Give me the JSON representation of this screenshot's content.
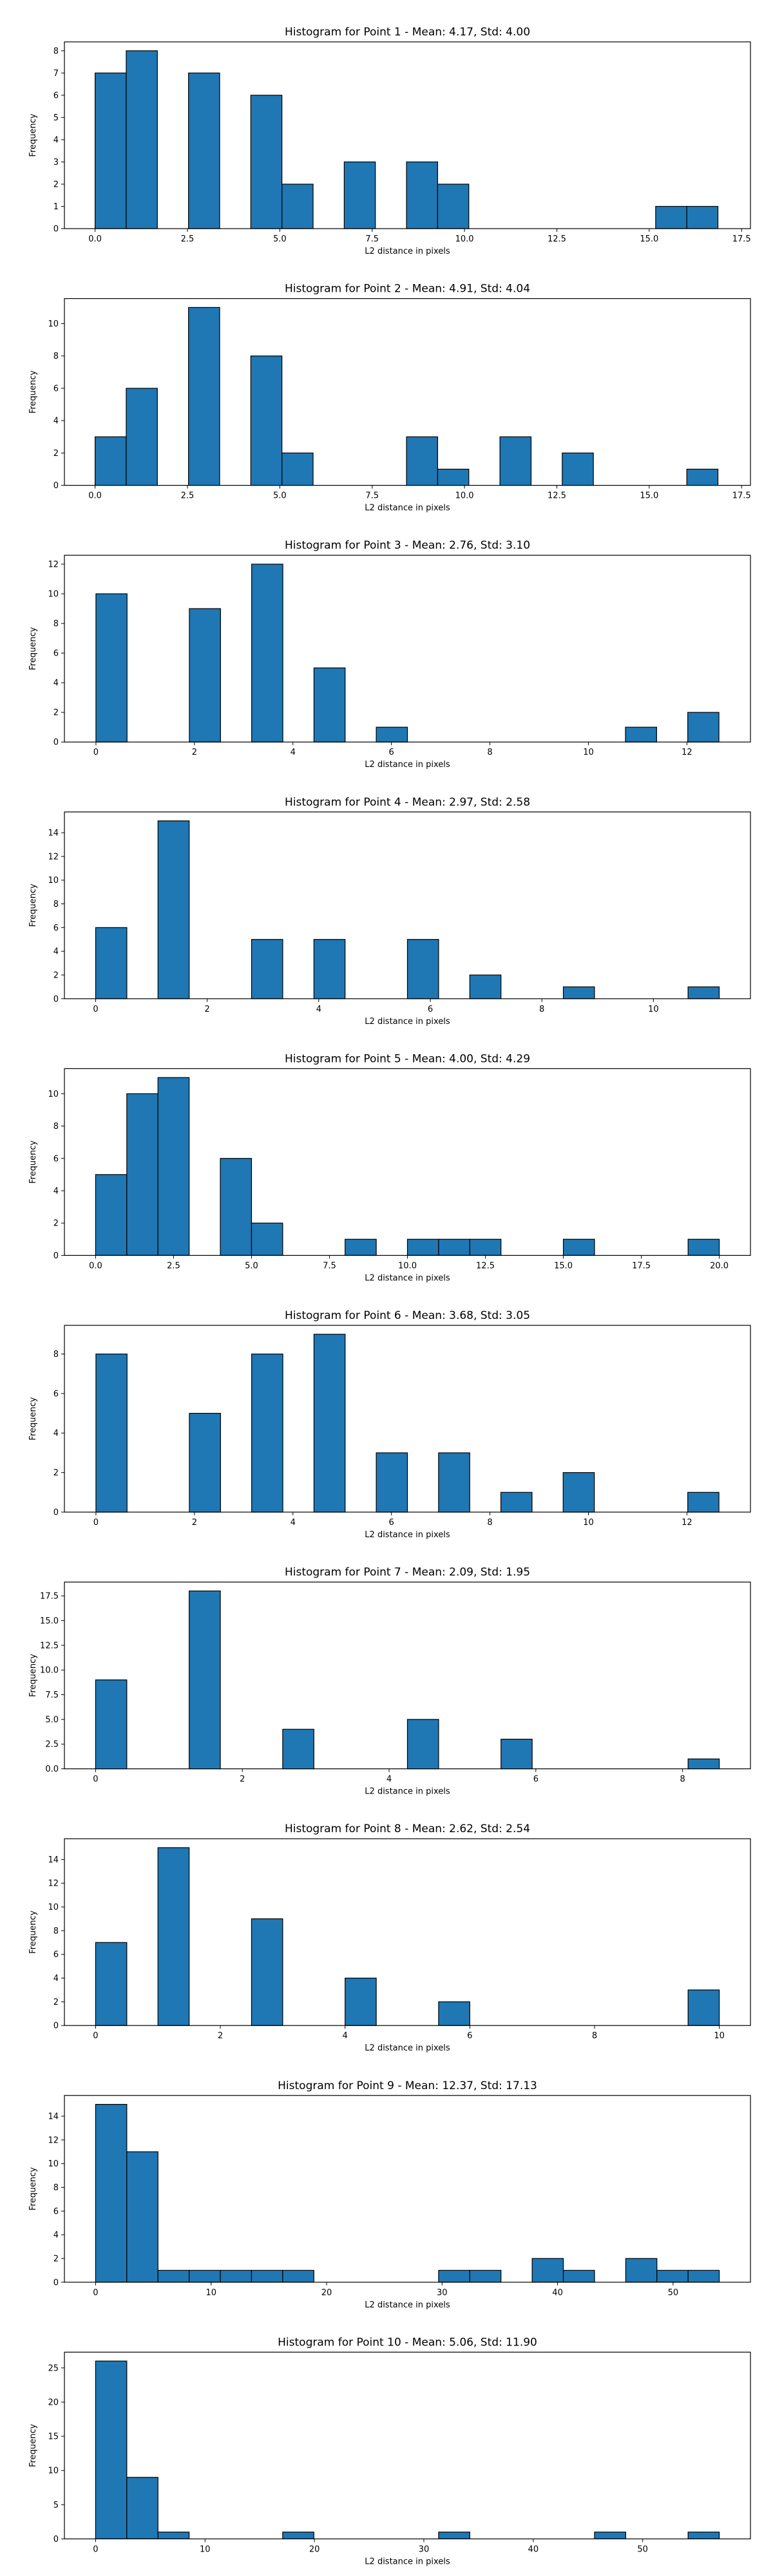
{
  "chart_data": [
    {
      "type": "bar",
      "title": "Histogram for Point 1 - Mean: 4.17, Std: 4.00",
      "xlabel": "L2 distance in pixels",
      "ylabel": "Frequency",
      "xlim": [
        -0.83,
        17.74
      ],
      "ylim": [
        0,
        8.4
      ],
      "xticks": [
        0.0,
        2.5,
        5.0,
        7.5,
        10.0,
        12.5,
        15.0,
        17.5
      ],
      "xtick_labels": [
        "0.0",
        "2.5",
        "5.0",
        "7.5",
        "10.0",
        "12.5",
        "15.0",
        "17.5"
      ],
      "yticks": [
        0,
        1,
        2,
        3,
        4,
        5,
        6,
        7,
        8
      ],
      "ytick_labels": [
        "0",
        "1",
        "2",
        "3",
        "4",
        "5",
        "6",
        "7",
        "8"
      ],
      "bin_edges": [
        0,
        0.843,
        1.686,
        2.529,
        3.372,
        4.215,
        5.058,
        5.901,
        6.744,
        7.587,
        8.43,
        9.273,
        10.116,
        10.959,
        11.802,
        12.645,
        13.488,
        14.331,
        15.174,
        16.017,
        16.86
      ],
      "values": [
        7,
        8,
        0,
        7,
        0,
        6,
        2,
        0,
        3,
        0,
        3,
        2,
        0,
        0,
        0,
        0,
        0,
        0,
        1,
        1
      ],
      "color": "#1f77b4"
    },
    {
      "type": "bar",
      "title": "Histogram for Point 2 - Mean: 4.91, Std: 4.04",
      "xlabel": "L2 distance in pixels",
      "ylabel": "Frequency",
      "xlim": [
        -0.83,
        17.74
      ],
      "ylim": [
        0,
        11.55
      ],
      "xticks": [
        0.0,
        2.5,
        5.0,
        7.5,
        10.0,
        12.5,
        15.0,
        17.5
      ],
      "xtick_labels": [
        "0.0",
        "2.5",
        "5.0",
        "7.5",
        "10.0",
        "12.5",
        "15.0",
        "17.5"
      ],
      "yticks": [
        0,
        2,
        4,
        6,
        8,
        10
      ],
      "ytick_labels": [
        "0",
        "2",
        "4",
        "6",
        "8",
        "10"
      ],
      "bin_edges": [
        0,
        0.843,
        1.686,
        2.529,
        3.372,
        4.215,
        5.058,
        5.901,
        6.744,
        7.587,
        8.43,
        9.273,
        10.116,
        10.959,
        11.802,
        12.645,
        13.488,
        14.331,
        15.174,
        16.017,
        16.86
      ],
      "values": [
        3,
        6,
        0,
        11,
        0,
        8,
        2,
        0,
        0,
        0,
        3,
        1,
        0,
        3,
        0,
        2,
        0,
        0,
        0,
        1
      ],
      "color": "#1f77b4"
    },
    {
      "type": "bar",
      "title": "Histogram for Point 3 - Mean: 2.76, Std: 3.10",
      "xlabel": "L2 distance in pixels",
      "ylabel": "Frequency",
      "xlim": [
        -0.64,
        13.29
      ],
      "ylim": [
        0,
        12.6
      ],
      "xticks": [
        0,
        2,
        4,
        6,
        8,
        10,
        12
      ],
      "xtick_labels": [
        "0",
        "2",
        "4",
        "6",
        "8",
        "10",
        "12"
      ],
      "yticks": [
        0,
        2,
        4,
        6,
        8,
        10,
        12
      ],
      "ytick_labels": [
        "0",
        "2",
        "4",
        "6",
        "8",
        "10",
        "12"
      ],
      "bin_edges": [
        0,
        0.632,
        1.265,
        1.897,
        2.53,
        3.162,
        3.795,
        4.427,
        5.06,
        5.692,
        6.325,
        6.957,
        7.59,
        8.222,
        8.855,
        9.487,
        10.12,
        10.752,
        11.385,
        12.017,
        12.65
      ],
      "values": [
        10,
        0,
        0,
        9,
        0,
        12,
        0,
        5,
        0,
        1,
        0,
        0,
        0,
        0,
        0,
        0,
        0,
        1,
        0,
        2
      ],
      "color": "#1f77b4"
    },
    {
      "type": "bar",
      "title": "Histogram for Point 4 - Mean: 2.97, Std: 2.58",
      "xlabel": "L2 distance in pixels",
      "ylabel": "Frequency",
      "xlim": [
        -0.56,
        11.74
      ],
      "ylim": [
        0,
        15.75
      ],
      "xticks": [
        0,
        2,
        4,
        6,
        8,
        10
      ],
      "xtick_labels": [
        "0",
        "2",
        "4",
        "6",
        "8",
        "10"
      ],
      "yticks": [
        0,
        2,
        4,
        6,
        8,
        10,
        12,
        14
      ],
      "ytick_labels": [
        "0",
        "2",
        "4",
        "6",
        "8",
        "10",
        "12",
        "14"
      ],
      "bin_edges": [
        0,
        0.559,
        1.118,
        1.677,
        2.236,
        2.795,
        3.354,
        3.913,
        4.472,
        5.031,
        5.59,
        6.149,
        6.708,
        7.267,
        7.826,
        8.385,
        8.944,
        9.503,
        10.062,
        10.621,
        11.18
      ],
      "values": [
        6,
        0,
        15,
        0,
        0,
        5,
        0,
        5,
        0,
        0,
        5,
        0,
        2,
        0,
        0,
        1,
        0,
        0,
        0,
        1
      ],
      "color": "#1f77b4"
    },
    {
      "type": "bar",
      "title": "Histogram for Point 5 - Mean: 4.00, Std: 4.29",
      "xlabel": "L2 distance in pixels",
      "ylabel": "Frequency",
      "xlim": [
        -1.0,
        21.0
      ],
      "ylim": [
        0,
        11.55
      ],
      "xticks": [
        0.0,
        2.5,
        5.0,
        7.5,
        10.0,
        12.5,
        15.0,
        17.5,
        20.0
      ],
      "xtick_labels": [
        "0.0",
        "2.5",
        "5.0",
        "7.5",
        "10.0",
        "12.5",
        "15.0",
        "17.5",
        "20.0"
      ],
      "yticks": [
        0,
        2,
        4,
        6,
        8,
        10
      ],
      "ytick_labels": [
        "0",
        "2",
        "4",
        "6",
        "8",
        "10"
      ],
      "bin_edges": [
        0,
        1,
        2,
        3,
        4,
        5,
        6,
        7,
        8,
        9,
        10,
        11,
        12,
        13,
        14,
        15,
        16,
        17,
        18,
        19,
        20
      ],
      "values": [
        5,
        10,
        11,
        0,
        6,
        2,
        0,
        0,
        1,
        0,
        1,
        1,
        1,
        0,
        0,
        1,
        0,
        0,
        0,
        1
      ],
      "color": "#1f77b4"
    },
    {
      "type": "bar",
      "title": "Histogram for Point 6 - Mean: 3.68, Std: 3.05",
      "xlabel": "L2 distance in pixels",
      "ylabel": "Frequency",
      "xlim": [
        -0.64,
        13.29
      ],
      "ylim": [
        0,
        9.45
      ],
      "xticks": [
        0,
        2,
        4,
        6,
        8,
        10,
        12
      ],
      "xtick_labels": [
        "0",
        "2",
        "4",
        "6",
        "8",
        "10",
        "12"
      ],
      "yticks": [
        0,
        2,
        4,
        6,
        8
      ],
      "ytick_labels": [
        "0",
        "2",
        "4",
        "6",
        "8"
      ],
      "bin_edges": [
        0,
        0.632,
        1.265,
        1.897,
        2.53,
        3.162,
        3.795,
        4.427,
        5.06,
        5.692,
        6.325,
        6.957,
        7.59,
        8.222,
        8.855,
        9.487,
        10.12,
        10.752,
        11.385,
        12.017,
        12.65
      ],
      "values": [
        8,
        0,
        0,
        5,
        0,
        8,
        0,
        9,
        0,
        3,
        0,
        3,
        0,
        1,
        0,
        2,
        0,
        0,
        0,
        1
      ],
      "color": "#1f77b4"
    },
    {
      "type": "bar",
      "title": "Histogram for Point 7 - Mean: 2.09, Std: 1.95",
      "xlabel": "L2 distance in pixels",
      "ylabel": "Frequency",
      "xlim": [
        -0.425,
        8.925
      ],
      "ylim": [
        0,
        18.9
      ],
      "xticks": [
        0,
        2,
        4,
        6,
        8
      ],
      "xtick_labels": [
        "0",
        "2",
        "4",
        "6",
        "8"
      ],
      "yticks": [
        0,
        2.5,
        5.0,
        7.5,
        10.0,
        12.5,
        15.0,
        17.5
      ],
      "ytick_labels": [
        "0.0",
        "2.5",
        "5.0",
        "7.5",
        "10.0",
        "12.5",
        "15.0",
        "17.5"
      ],
      "bin_edges": [
        0,
        0.425,
        0.85,
        1.275,
        1.7,
        2.125,
        2.55,
        2.975,
        3.4,
        3.825,
        4.25,
        4.675,
        5.1,
        5.525,
        5.95,
        6.375,
        6.8,
        7.225,
        7.65,
        8.075,
        8.5
      ],
      "values": [
        9,
        0,
        0,
        18,
        0,
        0,
        4,
        0,
        0,
        0,
        5,
        0,
        0,
        3,
        0,
        0,
        0,
        0,
        0,
        1
      ],
      "color": "#1f77b4"
    },
    {
      "type": "bar",
      "title": "Histogram for Point 8 - Mean: 2.62, Std: 2.54",
      "xlabel": "L2 distance in pixels",
      "ylabel": "Frequency",
      "xlim": [
        -0.5,
        10.5
      ],
      "ylim": [
        0,
        15.75
      ],
      "xticks": [
        0,
        2,
        4,
        6,
        8,
        10
      ],
      "xtick_labels": [
        "0",
        "2",
        "4",
        "6",
        "8",
        "10"
      ],
      "yticks": [
        0,
        2,
        4,
        6,
        8,
        10,
        12,
        14
      ],
      "ytick_labels": [
        "0",
        "2",
        "4",
        "6",
        "8",
        "10",
        "12",
        "14"
      ],
      "bin_edges": [
        0,
        0.5,
        1,
        1.5,
        2,
        2.5,
        3,
        3.5,
        4,
        4.5,
        5,
        5.5,
        6,
        6.5,
        7,
        7.5,
        8,
        8.5,
        9,
        9.5,
        10
      ],
      "values": [
        7,
        0,
        15,
        0,
        0,
        9,
        0,
        0,
        4,
        0,
        0,
        2,
        0,
        0,
        0,
        0,
        0,
        0,
        0,
        3
      ],
      "color": "#1f77b4"
    },
    {
      "type": "bar",
      "title": "Histogram for Point 9 - Mean: 12.37, Std: 17.13",
      "xlabel": "L2 distance in pixels",
      "ylabel": "Frequency",
      "xlim": [
        -2.7,
        56.7
      ],
      "ylim": [
        0,
        15.75
      ],
      "xticks": [
        0,
        10,
        20,
        30,
        40,
        50
      ],
      "xtick_labels": [
        "0",
        "10",
        "20",
        "30",
        "40",
        "50"
      ],
      "yticks": [
        0,
        2,
        4,
        6,
        8,
        10,
        12,
        14
      ],
      "ytick_labels": [
        "0",
        "2",
        "4",
        "6",
        "8",
        "10",
        "12",
        "14"
      ],
      "bin_edges": [
        0,
        2.7,
        5.4,
        8.1,
        10.8,
        13.5,
        16.2,
        18.9,
        21.6,
        24.3,
        27,
        29.7,
        32.4,
        35.1,
        37.8,
        40.5,
        43.2,
        45.9,
        48.6,
        51.3,
        54
      ],
      "values": [
        15,
        11,
        1,
        1,
        1,
        1,
        1,
        0,
        0,
        0,
        0,
        1,
        1,
        0,
        2,
        1,
        0,
        2,
        1,
        1
      ],
      "color": "#1f77b4"
    },
    {
      "type": "bar",
      "title": "Histogram for Point 10 - Mean: 5.06, Std: 11.90",
      "xlabel": "L2 distance in pixels",
      "ylabel": "Frequency",
      "xlim": [
        -2.85,
        59.85
      ],
      "ylim": [
        0,
        27.3
      ],
      "xticks": [
        0,
        10,
        20,
        30,
        40,
        50
      ],
      "xtick_labels": [
        "0",
        "10",
        "20",
        "30",
        "40",
        "50"
      ],
      "yticks": [
        0,
        5,
        10,
        15,
        20,
        25
      ],
      "ytick_labels": [
        "0",
        "5",
        "10",
        "15",
        "20",
        "25"
      ],
      "bin_edges": [
        0,
        2.85,
        5.7,
        8.55,
        11.4,
        14.25,
        17.1,
        19.95,
        22.8,
        25.65,
        28.5,
        31.35,
        34.2,
        37.05,
        39.9,
        42.75,
        45.6,
        48.45,
        51.3,
        54.15,
        57
      ],
      "values": [
        26,
        9,
        1,
        0,
        0,
        0,
        1,
        0,
        0,
        0,
        0,
        1,
        0,
        0,
        0,
        0,
        1,
        0,
        0,
        1
      ],
      "color": "#1f77b4"
    }
  ]
}
